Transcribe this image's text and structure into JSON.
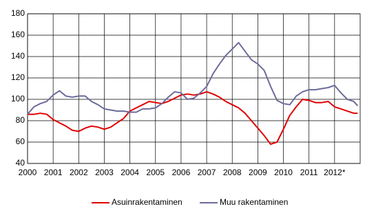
{
  "chart_data": {
    "type": "line",
    "x": [
      2000,
      2000.25,
      2000.5,
      2000.75,
      2001,
      2001.25,
      2001.5,
      2001.75,
      2002,
      2002.25,
      2002.5,
      2002.75,
      2003,
      2003.25,
      2003.5,
      2003.75,
      2004,
      2004.25,
      2004.5,
      2004.75,
      2005,
      2005.25,
      2005.5,
      2005.75,
      2006,
      2006.25,
      2006.5,
      2006.75,
      2007,
      2007.25,
      2007.5,
      2007.75,
      2008,
      2008.25,
      2008.5,
      2008.75,
      2009,
      2009.25,
      2009.5,
      2009.75,
      2010,
      2010.25,
      2010.5,
      2010.75,
      2011,
      2011.25,
      2011.5,
      2011.75,
      2012,
      2012.25,
      2012.5,
      2012.75,
      2012.9
    ],
    "series": [
      {
        "name": "Asuinrakentaminen",
        "color": "#e00000",
        "values": [
          86,
          86,
          87,
          86,
          81,
          78,
          75,
          71,
          70,
          73,
          75,
          74,
          72,
          74,
          78,
          82,
          89,
          92,
          95,
          98,
          97,
          96,
          98,
          101,
          104,
          105,
          104,
          105,
          107,
          105,
          102,
          98,
          95,
          92,
          87,
          80,
          73,
          66,
          58,
          60,
          72,
          85,
          93,
          100,
          99,
          97,
          97,
          98,
          93,
          91,
          89,
          87,
          87
        ]
      },
      {
        "name": "Muu rakentaminen",
        "color": "#6b6b9b",
        "values": [
          86,
          93,
          96,
          98,
          104,
          108,
          103,
          102,
          103,
          103,
          98,
          95,
          91,
          90,
          89,
          89,
          88,
          88,
          91,
          91,
          92,
          96,
          102,
          107,
          106,
          100,
          101,
          106,
          112,
          124,
          133,
          141,
          147,
          153,
          145,
          137,
          133,
          127,
          112,
          99,
          96,
          95,
          103,
          107,
          109,
          109,
          110,
          111,
          113,
          106,
          100,
          98,
          94
        ]
      }
    ],
    "xlim": [
      2000,
      2013
    ],
    "xticks": [
      2000,
      2001,
      2002,
      2003,
      2004,
      2005,
      2006,
      2007,
      2008,
      2009,
      2010,
      2011,
      {
        "value": 2012,
        "label": "2012*"
      }
    ],
    "ylim": [
      40,
      180
    ],
    "yticks": [
      40,
      60,
      80,
      100,
      120,
      140,
      160,
      180
    ],
    "grid": true
  }
}
